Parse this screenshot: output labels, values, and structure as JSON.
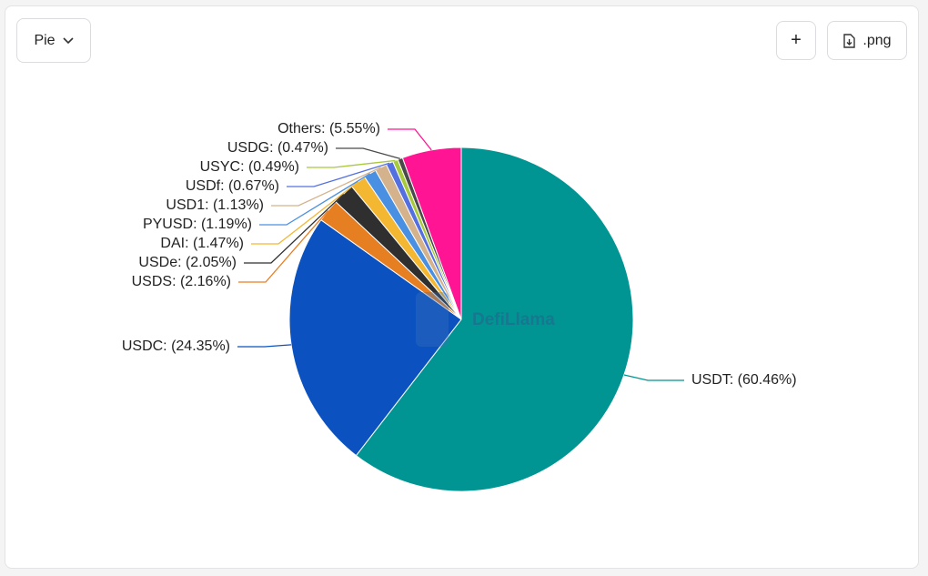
{
  "ui": {
    "view_select": "Pie",
    "add_button": "+",
    "export_button": ".png",
    "watermark": "DefiLlama"
  },
  "chart_data": {
    "type": "pie",
    "values": [
      60.46,
      24.35,
      2.16,
      2.05,
      1.47,
      1.19,
      1.13,
      0.67,
      0.49,
      0.47,
      5.55
    ],
    "value_labels": [
      "USDT: (60.46%)",
      "USDC: (24.35%)",
      "USDS: (2.16%)",
      "USDe: (2.05%)",
      "DAI: (1.47%)",
      "PYUSD: (1.19%)",
      "USD1: (1.13%)",
      "USDf: (0.67%)",
      "USYC: (0.49%)",
      "USDG: (0.47%)",
      "Others: (5.55%)"
    ],
    "colors": [
      "#009592",
      "#0b52c0",
      "#e67e22",
      "#2f2f2f",
      "#f4b731",
      "#4a90e2",
      "#d4b38c",
      "#5470e0",
      "#a8c93b",
      "#4a4a4a",
      "#ff1493"
    ]
  }
}
